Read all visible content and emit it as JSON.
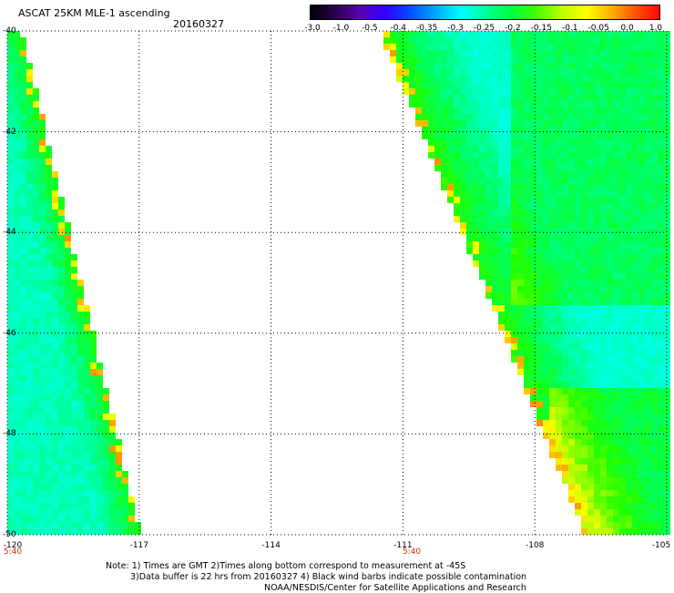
{
  "header": {
    "title": "ASCAT 25KM MLE-1 ascending",
    "date": "20160327"
  },
  "colorbar": {
    "labels": [
      "-3.0",
      "-1.0",
      "-0.5",
      "-0.4",
      "-0.35",
      "-0.3",
      "-0.25",
      "-0.2",
      "-0.15",
      "-0.1",
      "-0.05",
      "0.0",
      "1.0"
    ],
    "colors": [
      "#000000",
      "#4b0082",
      "#0000ff",
      "#0080ff",
      "#00c0ff",
      "#00ffff",
      "#00ff80",
      "#00ff00",
      "#80ff00",
      "#ffff00",
      "#ffa500",
      "#ff4500",
      "#ff0000"
    ]
  },
  "map": {
    "lat_labels": [
      "-40",
      "-42",
      "-44",
      "-46",
      "-48",
      "-50"
    ],
    "lon_labels": [
      "-120",
      "-117",
      "-114",
      "-111",
      "-108",
      "-105"
    ],
    "time_labels": [
      {
        "text": "5:40",
        "lon": -120
      },
      {
        "text": "5:40",
        "lon": -110.8
      }
    ]
  },
  "notes": {
    "line1": "Note: 1) Times are GMT 2)Times along bottom correspond to measurement at -45S",
    "line2": "3)Data buffer is 22 hrs from 20160327 4) Black wind barbs indicate possible contamination",
    "line3": "NOAA/NESDIS/Center for Satellite Applications and Research"
  }
}
